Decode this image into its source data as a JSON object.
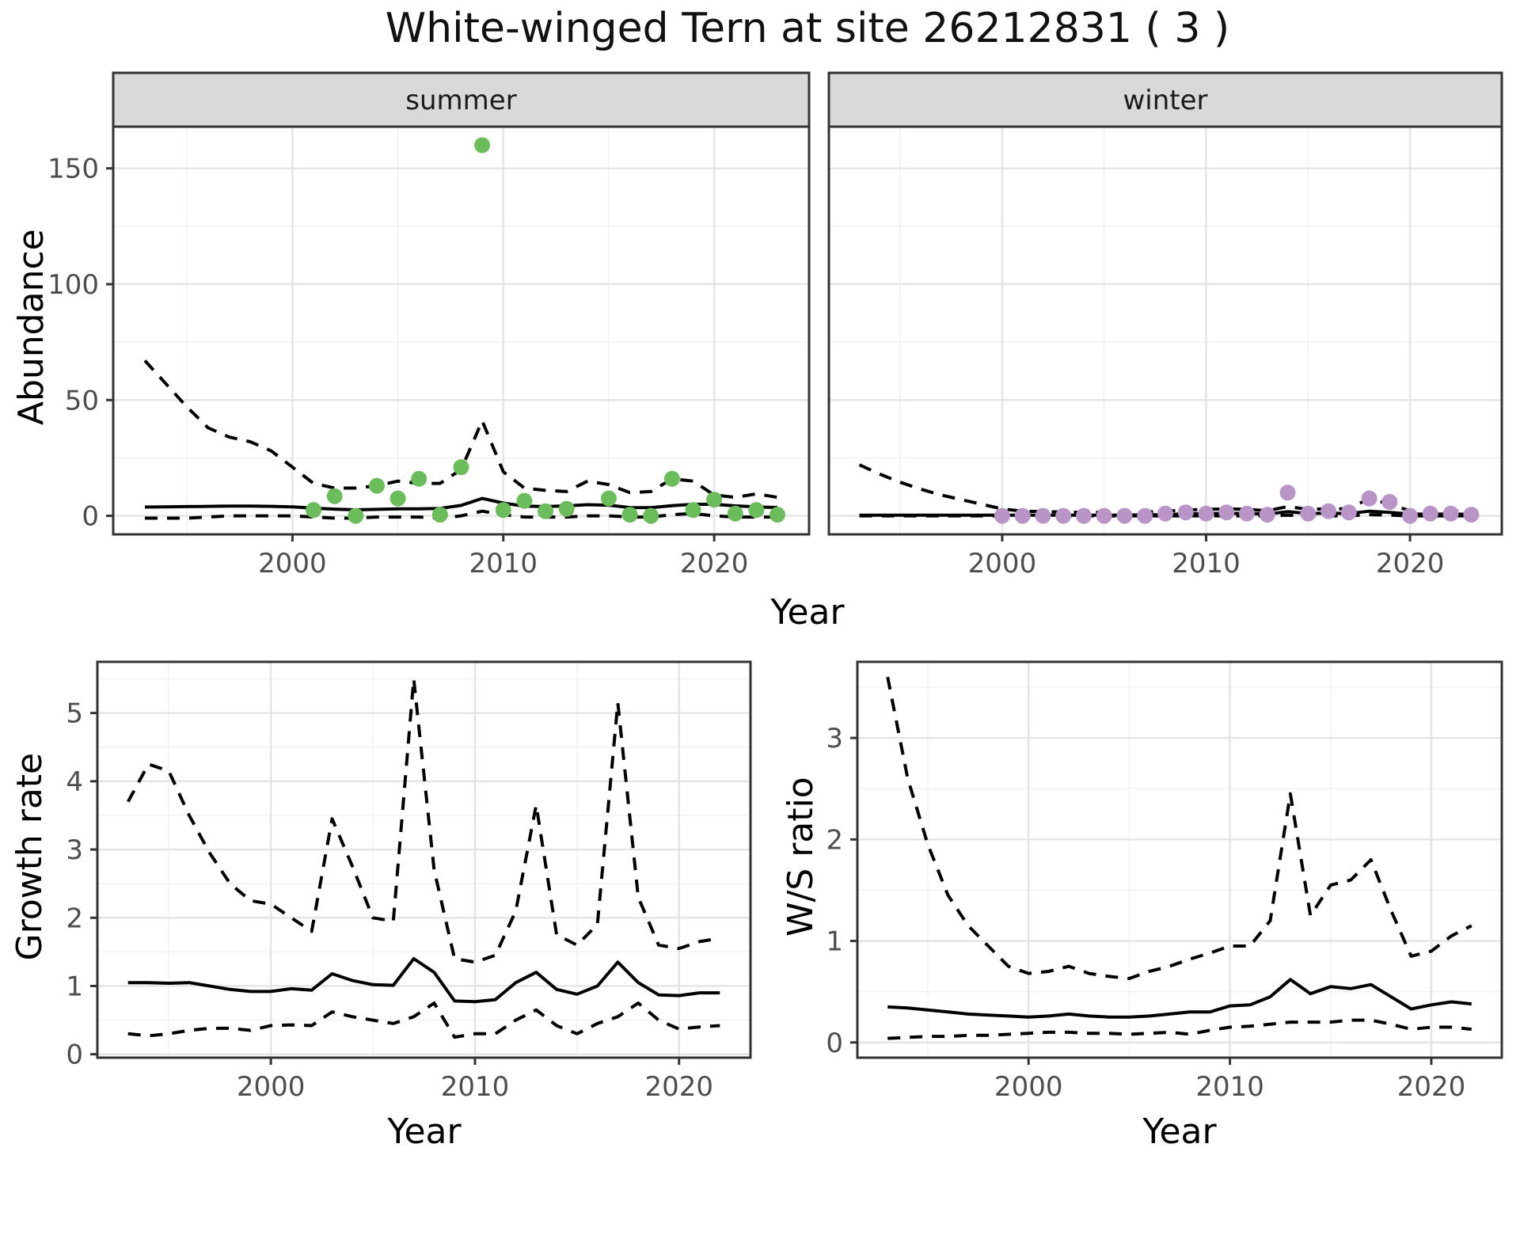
{
  "title": "White-winged Tern at site 26212831 ( 3 )",
  "colors": {
    "summer_points": "#6BBC5A",
    "winter_points": "#B894C7",
    "line": "#000000",
    "strip_background": "#D9D9D9",
    "panel_border": "#333333",
    "grid_major": "#E4E4E4",
    "grid_minor": "#F2F2F2",
    "tick_label": "#4D4D4D",
    "strip_text": "#1a1a1a"
  },
  "chart_data": [
    {
      "key": "abundance-summer",
      "type": "line+scatter",
      "facet_label": "summer",
      "ylabel": "Abundance",
      "xlabel": "Year",
      "x_domain": [
        1991.5,
        2024.5
      ],
      "y_domain": [
        -8,
        168
      ],
      "x_ticks": [
        2000,
        2010,
        2020
      ],
      "x_minor": [
        1995,
        2005,
        2015
      ],
      "y_ticks": [
        0,
        50,
        100,
        150
      ],
      "y_minor": [
        25,
        75,
        125
      ],
      "years": [
        1993,
        1994,
        1995,
        1996,
        1997,
        1998,
        1999,
        2000,
        2001,
        2002,
        2003,
        2004,
        2005,
        2006,
        2007,
        2008,
        2009,
        2010,
        2011,
        2012,
        2013,
        2014,
        2015,
        2016,
        2017,
        2018,
        2019,
        2020,
        2021,
        2022,
        2023
      ],
      "series": [
        {
          "name": "upper-ci",
          "style": "dashed",
          "values": [
            67,
            57,
            47,
            38,
            34,
            32,
            28,
            21,
            14,
            12,
            12,
            13,
            15,
            14,
            14,
            20,
            41,
            19,
            12,
            11,
            10.5,
            15,
            13.5,
            10,
            10.5,
            16,
            15,
            9,
            8,
            9.5,
            8
          ]
        },
        {
          "name": "lower-ci",
          "style": "dashed",
          "values": [
            -1,
            -1,
            -1,
            -0.5,
            0,
            0,
            0,
            0,
            -0.5,
            -1,
            -1,
            -0.5,
            -0.5,
            -0.5,
            -1,
            0,
            2,
            0.5,
            -0.5,
            -0.5,
            -0.5,
            0,
            0,
            -0.5,
            -0.5,
            0.5,
            1,
            0,
            -0.5,
            -0.5,
            -0.5
          ]
        },
        {
          "name": "mean",
          "style": "solid",
          "values": [
            3.8,
            3.9,
            4.0,
            4.1,
            4.2,
            4.2,
            4.1,
            3.9,
            3.3,
            2.9,
            2.6,
            2.8,
            3.0,
            3.0,
            3.2,
            4.5,
            7.5,
            5.5,
            4.2,
            4.0,
            4.3,
            4.8,
            4.6,
            3.6,
            3.5,
            4.4,
            5.0,
            5.0,
            4.3,
            3.9,
            3.6
          ]
        }
      ],
      "obs_years": [
        2001,
        2002,
        2003,
        2004,
        2005,
        2006,
        2007,
        2008,
        2009,
        2010,
        2011,
        2012,
        2013,
        2015,
        2016,
        2017,
        2018,
        2019,
        2020,
        2021,
        2022,
        2023
      ],
      "obs_values": [
        2.5,
        8.5,
        0,
        13,
        7.5,
        16,
        0.5,
        21,
        160,
        2.5,
        6.5,
        2,
        3,
        7.5,
        0.5,
        0,
        16,
        2.5,
        7,
        1,
        2.5,
        0.5
      ],
      "obs_color": "#6BBC5A"
    },
    {
      "key": "abundance-winter",
      "type": "line+scatter",
      "facet_label": "winter",
      "xlabel": "Year",
      "x_domain": [
        1991.5,
        2024.5
      ],
      "y_domain": [
        -8,
        168
      ],
      "x_ticks": [
        2000,
        2010,
        2020
      ],
      "x_minor": [
        1995,
        2005,
        2015
      ],
      "y_ticks": [
        0,
        50,
        100,
        150
      ],
      "y_minor": [
        25,
        75,
        125
      ],
      "years": [
        1993,
        1994,
        1995,
        1996,
        1997,
        1998,
        1999,
        2000,
        2001,
        2002,
        2003,
        2004,
        2005,
        2006,
        2007,
        2008,
        2009,
        2010,
        2011,
        2012,
        2013,
        2014,
        2015,
        2016,
        2017,
        2018,
        2019,
        2020,
        2021,
        2022,
        2023
      ],
      "series": [
        {
          "name": "upper-ci",
          "style": "dashed",
          "values": [
            22,
            18,
            14.5,
            11.5,
            9,
            7,
            5,
            3,
            2,
            1.8,
            1.6,
            1.5,
            1.5,
            1.5,
            1.6,
            2,
            2.5,
            2.8,
            3,
            2.8,
            2.2,
            4,
            2.8,
            3,
            3,
            7.5,
            5,
            2.2,
            2,
            2.2,
            1.8
          ]
        },
        {
          "name": "lower-ci",
          "style": "dashed",
          "values": [
            0,
            0,
            0,
            0,
            0,
            0,
            0,
            0,
            0,
            0,
            0,
            0,
            0,
            0,
            0,
            0,
            0,
            0,
            0,
            0,
            0,
            0.3,
            0,
            0,
            0,
            0.5,
            0.3,
            0,
            0,
            0,
            0
          ]
        },
        {
          "name": "mean",
          "style": "solid",
          "values": [
            0.3,
            0.3,
            0.3,
            0.3,
            0.3,
            0.3,
            0.3,
            0.3,
            0.3,
            0.3,
            0.3,
            0.3,
            0.3,
            0.35,
            0.4,
            0.5,
            0.9,
            1.0,
            1.1,
            1.0,
            0.8,
            1.8,
            1.0,
            1.2,
            1.0,
            2.0,
            1.5,
            0.8,
            0.7,
            0.8,
            0.6
          ]
        }
      ],
      "obs_years": [
        2000,
        2001,
        2002,
        2003,
        2004,
        2005,
        2006,
        2007,
        2008,
        2009,
        2010,
        2011,
        2012,
        2013,
        2014,
        2015,
        2016,
        2017,
        2018,
        2019,
        2020,
        2021,
        2022,
        2023
      ],
      "obs_values": [
        0,
        0,
        0,
        0,
        0,
        0,
        0,
        0,
        1,
        1.5,
        1,
        1.5,
        1,
        0.5,
        10,
        1,
        2,
        1.5,
        7.5,
        6,
        0,
        1,
        1,
        0.5
      ],
      "obs_color": "#B894C7"
    },
    {
      "key": "growth-rate",
      "type": "line",
      "ylabel": "Growth rate",
      "xlabel": "Year",
      "x_domain": [
        1991.5,
        2023.5
      ],
      "y_domain": [
        -0.05,
        5.75
      ],
      "x_ticks": [
        2000,
        2010,
        2020
      ],
      "x_minor": [
        1995,
        2005,
        2015
      ],
      "y_ticks": [
        0,
        1,
        2,
        3,
        4,
        5
      ],
      "y_minor": [
        0.5,
        1.5,
        2.5,
        3.5,
        4.5,
        5.5
      ],
      "years": [
        1993,
        1994,
        1995,
        1996,
        1997,
        1998,
        1999,
        2000,
        2001,
        2002,
        2003,
        2004,
        2005,
        2006,
        2007,
        2008,
        2009,
        2010,
        2011,
        2012,
        2013,
        2014,
        2015,
        2016,
        2017,
        2018,
        2019,
        2020,
        2021,
        2022
      ],
      "series": [
        {
          "name": "upper-ci",
          "style": "dashed",
          "values": [
            3.7,
            4.25,
            4.15,
            3.5,
            2.95,
            2.5,
            2.25,
            2.2,
            2.0,
            1.8,
            3.45,
            2.75,
            2.0,
            1.95,
            5.5,
            2.7,
            1.4,
            1.35,
            1.45,
            2.1,
            3.65,
            1.75,
            1.6,
            1.9,
            5.15,
            2.3,
            1.6,
            1.55,
            1.65,
            1.7
          ]
        },
        {
          "name": "lower-ci",
          "style": "dashed",
          "values": [
            0.3,
            0.27,
            0.3,
            0.35,
            0.38,
            0.38,
            0.35,
            0.42,
            0.43,
            0.42,
            0.62,
            0.55,
            0.5,
            0.45,
            0.55,
            0.75,
            0.25,
            0.3,
            0.3,
            0.5,
            0.65,
            0.42,
            0.3,
            0.45,
            0.55,
            0.75,
            0.5,
            0.37,
            0.4,
            0.42
          ]
        },
        {
          "name": "mean",
          "style": "solid",
          "values": [
            1.05,
            1.05,
            1.04,
            1.05,
            1.0,
            0.95,
            0.92,
            0.92,
            0.96,
            0.94,
            1.18,
            1.08,
            1.02,
            1.01,
            1.4,
            1.2,
            0.78,
            0.77,
            0.8,
            1.05,
            1.2,
            0.95,
            0.88,
            1.0,
            1.35,
            1.05,
            0.87,
            0.86,
            0.9,
            0.9
          ]
        }
      ],
      "obs_years": null,
      "obs_values": null,
      "obs_color": null
    },
    {
      "key": "ws-ratio",
      "type": "line",
      "ylabel": "W/S ratio",
      "xlabel": "Year",
      "x_domain": [
        1991.5,
        2023.5
      ],
      "y_domain": [
        -0.15,
        3.75
      ],
      "x_ticks": [
        2000,
        2010,
        2020
      ],
      "x_minor": [
        1995,
        2005,
        2015
      ],
      "y_ticks": [
        0,
        1,
        2,
        3
      ],
      "y_minor": [
        0.5,
        1.5,
        2.5,
        3.5
      ],
      "years": [
        1993,
        1994,
        1995,
        1996,
        1997,
        1998,
        1999,
        2000,
        2001,
        2002,
        2003,
        2004,
        2005,
        2006,
        2007,
        2008,
        2009,
        2010,
        2011,
        2012,
        2013,
        2014,
        2015,
        2016,
        2017,
        2018,
        2019,
        2020,
        2021,
        2022
      ],
      "series": [
        {
          "name": "upper-ci",
          "style": "dashed",
          "values": [
            3.6,
            2.6,
            1.95,
            1.45,
            1.15,
            0.95,
            0.75,
            0.68,
            0.7,
            0.75,
            0.68,
            0.65,
            0.63,
            0.7,
            0.75,
            0.82,
            0.88,
            0.95,
            0.95,
            1.2,
            2.45,
            1.25,
            1.55,
            1.6,
            1.8,
            1.3,
            0.85,
            0.9,
            1.05,
            1.15
          ]
        },
        {
          "name": "lower-ci",
          "style": "dashed",
          "values": [
            0.04,
            0.05,
            0.06,
            0.06,
            0.07,
            0.07,
            0.08,
            0.09,
            0.1,
            0.1,
            0.09,
            0.09,
            0.08,
            0.09,
            0.1,
            0.08,
            0.12,
            0.15,
            0.16,
            0.18,
            0.2,
            0.2,
            0.2,
            0.22,
            0.22,
            0.18,
            0.13,
            0.15,
            0.15,
            0.13
          ]
        },
        {
          "name": "mean",
          "style": "solid",
          "values": [
            0.35,
            0.34,
            0.32,
            0.3,
            0.28,
            0.27,
            0.26,
            0.25,
            0.26,
            0.28,
            0.26,
            0.25,
            0.25,
            0.26,
            0.28,
            0.3,
            0.3,
            0.36,
            0.37,
            0.45,
            0.62,
            0.48,
            0.55,
            0.53,
            0.57,
            0.45,
            0.33,
            0.37,
            0.4,
            0.38
          ]
        }
      ],
      "obs_years": null,
      "obs_values": null,
      "obs_color": null
    }
  ]
}
